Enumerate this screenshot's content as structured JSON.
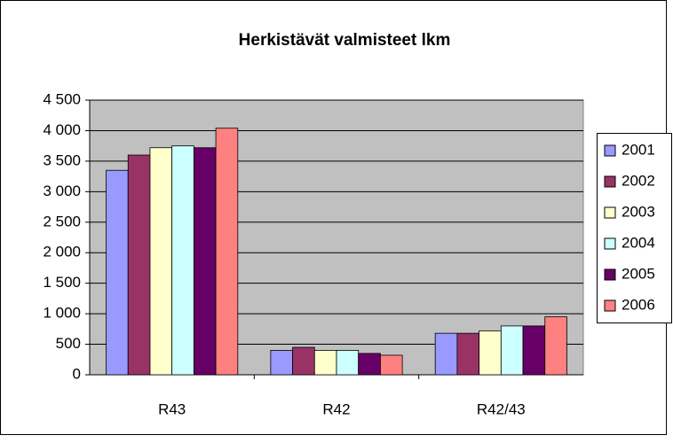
{
  "chart_data": {
    "type": "bar",
    "title": "Herkistävät valmisteet lkm",
    "categories": [
      "R43",
      "R42",
      "R42/43"
    ],
    "series": [
      {
        "name": "2001",
        "color": "#9999ff",
        "values": [
          3350,
          400,
          680
        ]
      },
      {
        "name": "2002",
        "color": "#993366",
        "values": [
          3600,
          450,
          680
        ]
      },
      {
        "name": "2003",
        "color": "#ffffcc",
        "values": [
          3720,
          400,
          720
        ]
      },
      {
        "name": "2004",
        "color": "#ccffff",
        "values": [
          3750,
          400,
          800
        ]
      },
      {
        "name": "2005",
        "color": "#660066",
        "values": [
          3720,
          350,
          800
        ]
      },
      {
        "name": "2006",
        "color": "#ff8080",
        "values": [
          4040,
          320,
          950
        ]
      }
    ],
    "ylim": [
      0,
      4500
    ],
    "yticks": [
      0,
      500,
      {
        "value": 1000,
        "label": "1 000"
      },
      {
        "value": 1500,
        "label": "1 500"
      },
      {
        "value": 2000,
        "label": "2 000"
      },
      {
        "value": 2500,
        "label": "2 500"
      },
      {
        "value": 3000,
        "label": "3 000"
      },
      {
        "value": 3500,
        "label": "3 500"
      },
      {
        "value": 4000,
        "label": "4 000"
      },
      {
        "value": 4500,
        "label": "4 500"
      }
    ],
    "grid": true,
    "legend": "right"
  }
}
